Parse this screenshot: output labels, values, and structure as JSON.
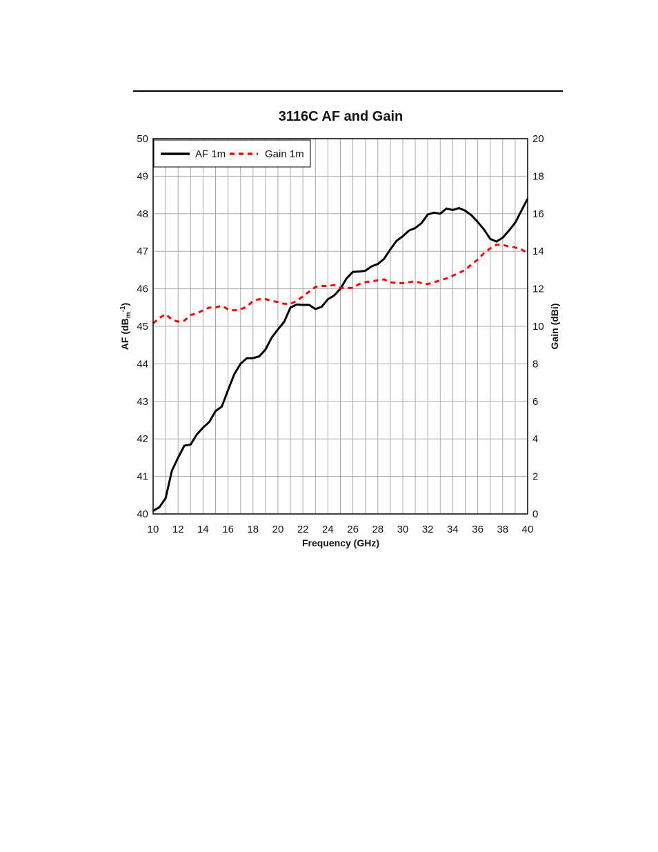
{
  "chart_data": {
    "type": "line",
    "title": "3116C AF and Gain",
    "xlabel": "Frequency (GHz)",
    "ylabel_left": "AF (dB",
    "ylabel_left_sub": "m",
    "ylabel_left_sup": "-1",
    "ylabel_left_close": ")",
    "ylabel_right": "Gain (dBi)",
    "xlim": [
      10,
      40
    ],
    "ylim_left": [
      40,
      50
    ],
    "ylim_right": [
      0,
      20
    ],
    "x_ticks": [
      "10",
      "12",
      "14",
      "16",
      "18",
      "20",
      "22",
      "24",
      "26",
      "28",
      "30",
      "32",
      "34",
      "36",
      "38",
      "40"
    ],
    "y_left_ticks": [
      "40",
      "41",
      "42",
      "43",
      "44",
      "45",
      "46",
      "47",
      "48",
      "49",
      "50"
    ],
    "y_right_ticks": [
      "0",
      "2",
      "4",
      "6",
      "8",
      "10",
      "12",
      "14",
      "16",
      "18",
      "20"
    ],
    "grid": true,
    "legend_position": "top-left",
    "series": [
      {
        "name": "AF 1m",
        "axis": "left",
        "color": "#000000",
        "style": "solid",
        "x": [
          10,
          10.5,
          11,
          11.5,
          12,
          12.5,
          13,
          13.5,
          14,
          14.5,
          15,
          15.5,
          16,
          16.5,
          17,
          17.5,
          18,
          18.5,
          19,
          19.5,
          20,
          20.5,
          21,
          21.5,
          22,
          22.5,
          23,
          23.5,
          24,
          24.5,
          25,
          25.5,
          26,
          26.5,
          27,
          27.5,
          28,
          28.5,
          29,
          29.5,
          30,
          30.5,
          31,
          31.5,
          32,
          32.5,
          33,
          33.5,
          34,
          34.5,
          35,
          35.5,
          36,
          36.5,
          37,
          37.5,
          38,
          38.5,
          39,
          39.5,
          40
        ],
        "y": [
          40.08,
          40.18,
          40.42,
          41.15,
          41.5,
          41.82,
          41.85,
          42.12,
          42.3,
          42.45,
          42.74,
          42.86,
          43.3,
          43.72,
          44.0,
          44.15,
          44.15,
          44.2,
          44.38,
          44.7,
          44.92,
          45.12,
          45.5,
          45.58,
          45.57,
          45.57,
          45.46,
          45.52,
          45.72,
          45.82,
          46.0,
          46.28,
          46.45,
          46.46,
          46.48,
          46.6,
          46.66,
          46.8,
          47.05,
          47.28,
          47.4,
          47.55,
          47.62,
          47.75,
          47.98,
          48.03,
          48.0,
          48.14,
          48.1,
          48.15,
          48.08,
          47.96,
          47.78,
          47.58,
          47.33,
          47.26,
          47.36,
          47.55,
          47.76,
          48.08,
          48.4
        ]
      },
      {
        "name": "Gain 1m",
        "axis": "right",
        "color": "#ff0000",
        "style": "dashed",
        "x": [
          10,
          10.5,
          11,
          11.5,
          12,
          12.5,
          13,
          13.5,
          14,
          14.5,
          15,
          15.5,
          16,
          16.5,
          17,
          17.5,
          18,
          18.5,
          19,
          19.5,
          20,
          20.5,
          21,
          21.5,
          22,
          22.5,
          23,
          23.5,
          24,
          24.5,
          25,
          25.5,
          26,
          26.5,
          27,
          27.5,
          28,
          28.5,
          29,
          29.5,
          30,
          30.5,
          31,
          31.5,
          32,
          32.5,
          33,
          33.5,
          34,
          34.5,
          35,
          35.5,
          36,
          36.5,
          37,
          37.5,
          38,
          38.5,
          39,
          39.5,
          40
        ],
        "y": [
          10.15,
          10.45,
          10.65,
          10.35,
          10.25,
          10.3,
          10.6,
          10.7,
          10.85,
          11.0,
          11.0,
          11.1,
          10.9,
          10.85,
          10.9,
          11.05,
          11.35,
          11.45,
          11.45,
          11.35,
          11.3,
          11.2,
          11.2,
          11.35,
          11.6,
          11.85,
          12.1,
          12.15,
          12.15,
          12.2,
          12.05,
          12.05,
          12.05,
          12.25,
          12.35,
          12.4,
          12.45,
          12.5,
          12.35,
          12.3,
          12.3,
          12.35,
          12.4,
          12.3,
          12.25,
          12.35,
          12.45,
          12.55,
          12.7,
          12.85,
          13.0,
          13.3,
          13.55,
          13.9,
          14.15,
          14.35,
          14.35,
          14.25,
          14.2,
          14.1,
          13.9
        ]
      }
    ]
  }
}
